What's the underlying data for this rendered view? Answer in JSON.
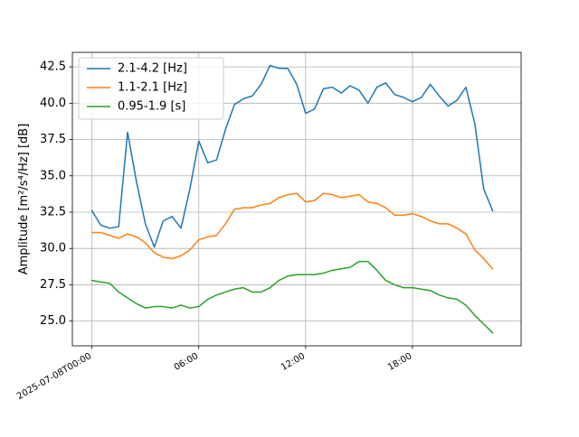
{
  "chart_data": {
    "type": "line",
    "title": "",
    "xlabel": "",
    "ylabel": "Amplitude",
    "ylabel_unit": "[m²/s⁴/Hz] [dB]",
    "x_axis": {
      "kind": "datetime",
      "start": "2025-07-08T00:00",
      "end": "2025-07-09T00:00",
      "range": [
        "2025-07-07T22:54",
        "2025-07-09T00:06"
      ],
      "ticks": [
        {
          "at": "2025-07-08T00:00",
          "label": "2025-07-08T00:00"
        },
        {
          "at": "2025-07-08T06:00",
          "label": "06:00"
        },
        {
          "at": "2025-07-08T12:00",
          "label": "12:00"
        },
        {
          "at": "2025-07-08T18:00",
          "label": "18:00"
        }
      ],
      "sample_interval_minutes": 30
    },
    "ylim": [
      23.3,
      43.5
    ],
    "yticks": [
      {
        "value": 25.0,
        "label": "25.0"
      },
      {
        "value": 27.5,
        "label": "27.5"
      },
      {
        "value": 30.0,
        "label": "30.0"
      },
      {
        "value": 32.5,
        "label": "32.5"
      },
      {
        "value": 35.0,
        "label": "35.0"
      },
      {
        "value": 37.5,
        "label": "37.5"
      },
      {
        "value": 40.0,
        "label": "40.0"
      },
      {
        "value": 42.5,
        "label": "42.5"
      }
    ],
    "grid": true,
    "legend_position": "top-left",
    "series": [
      {
        "name": "2.1-4.2 [Hz]",
        "color": "#1f77b4",
        "values": [
          32.6,
          31.6,
          31.4,
          31.5,
          38.0,
          34.6,
          31.7,
          30.1,
          31.9,
          32.2,
          31.4,
          34.1,
          37.4,
          35.9,
          36.1,
          38.2,
          39.9,
          40.3,
          40.5,
          41.3,
          42.6,
          42.4,
          42.4,
          41.3,
          39.3,
          39.6,
          41.0,
          41.1,
          40.7,
          41.2,
          40.9,
          40.0,
          41.1,
          41.4,
          40.6,
          40.4,
          40.1,
          40.4,
          41.3,
          40.5,
          39.8,
          40.2,
          41.1,
          38.6,
          34.1,
          32.6
        ]
      },
      {
        "name": "1.1-2.1 [Hz]",
        "color": "#ff7f0e",
        "values": [
          31.1,
          31.1,
          30.9,
          30.7,
          31.0,
          30.8,
          30.4,
          29.7,
          29.4,
          29.3,
          29.5,
          29.9,
          30.6,
          30.8,
          30.9,
          31.7,
          32.7,
          32.8,
          32.8,
          33.0,
          33.1,
          33.5,
          33.7,
          33.8,
          33.2,
          33.3,
          33.8,
          33.7,
          33.5,
          33.6,
          33.7,
          33.2,
          33.1,
          32.8,
          32.3,
          32.3,
          32.4,
          32.2,
          31.9,
          31.7,
          31.7,
          31.4,
          31.0,
          29.9,
          29.3,
          28.6
        ]
      },
      {
        "name": "0.95-1.9 [s]",
        "color": "#2ca02c",
        "values": [
          27.8,
          27.7,
          27.6,
          27.0,
          26.6,
          26.2,
          25.9,
          26.0,
          26.0,
          25.9,
          26.1,
          25.9,
          26.0,
          26.5,
          26.8,
          27.0,
          27.2,
          27.3,
          27.0,
          27.0,
          27.3,
          27.8,
          28.1,
          28.2,
          28.2,
          28.2,
          28.3,
          28.5,
          28.6,
          28.7,
          29.1,
          29.1,
          28.5,
          27.8,
          27.5,
          27.3,
          27.3,
          27.2,
          27.1,
          26.8,
          26.6,
          26.5,
          26.1,
          25.4,
          24.8,
          24.2
        ]
      }
    ]
  }
}
